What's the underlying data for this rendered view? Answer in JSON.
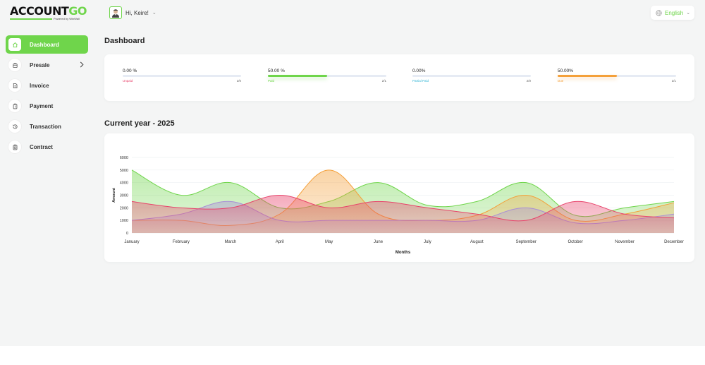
{
  "app": {
    "logo_prefix": "ACCOUNT",
    "logo_suffix": "GO",
    "logo_sub": "Powered by WinWall"
  },
  "user": {
    "greeting": "Hi, Keire!"
  },
  "language": {
    "selected": "English"
  },
  "sidebar": {
    "items": [
      {
        "label": "Dashboard",
        "icon": "home-icon",
        "active": true
      },
      {
        "label": "Presale",
        "icon": "cart-icon",
        "has_children": true
      },
      {
        "label": "Invoice",
        "icon": "document-icon"
      },
      {
        "label": "Payment",
        "icon": "clipboard-icon"
      },
      {
        "label": "Transaction",
        "icon": "history-icon"
      },
      {
        "label": "Contract",
        "icon": "contract-icon"
      }
    ]
  },
  "page": {
    "title": "Dashboard"
  },
  "stats": [
    {
      "percent_text": "0.00 %",
      "label": "Unpaid",
      "count": "2/0",
      "fraction": 0.0,
      "color": "#e8436b"
    },
    {
      "percent_text": "50.00 %",
      "label": "Paid",
      "count": "2/1",
      "fraction": 0.5,
      "color": "#6fd54b"
    },
    {
      "percent_text": "0.00%",
      "label": "Partial Paid",
      "count": "2/0",
      "fraction": 0.0,
      "color": "#35b6d6"
    },
    {
      "percent_text": "50.00%",
      "label": "Due",
      "count": "2/1",
      "fraction": 0.5,
      "color": "#f4a03a"
    }
  ],
  "chart_section": {
    "title": "Current year - 2025"
  },
  "chart_data": {
    "type": "area",
    "xlabel": "Months",
    "ylabel": "Amount",
    "ylim": [
      0,
      6000
    ],
    "yticks": [
      0,
      1000,
      2000,
      3000,
      4000,
      5000,
      6000
    ],
    "categories": [
      "January",
      "February",
      "March",
      "April",
      "May",
      "June",
      "July",
      "August",
      "September",
      "October",
      "November",
      "December"
    ],
    "grid": true,
    "series": [
      {
        "color": "#6fd54b",
        "values": [
          5000,
          3000,
          4000,
          2000,
          2500,
          4000,
          2200,
          2500,
          4000,
          1400,
          2000,
          2500
        ]
      },
      {
        "color": "#f4a03a",
        "values": [
          1000,
          1000,
          600,
          1500,
          5000,
          1500,
          1000,
          1400,
          3000,
          1000,
          1500,
          2400
        ]
      },
      {
        "color": "#a98fd6",
        "values": [
          1000,
          1500,
          2500,
          1000,
          1000,
          1000,
          1000,
          1000,
          2000,
          800,
          1000,
          1500
        ]
      },
      {
        "color": "#e8436b",
        "values": [
          2500,
          2000,
          2000,
          3000,
          2000,
          2500,
          2000,
          1500,
          1000,
          2500,
          1500,
          1200
        ]
      }
    ]
  }
}
